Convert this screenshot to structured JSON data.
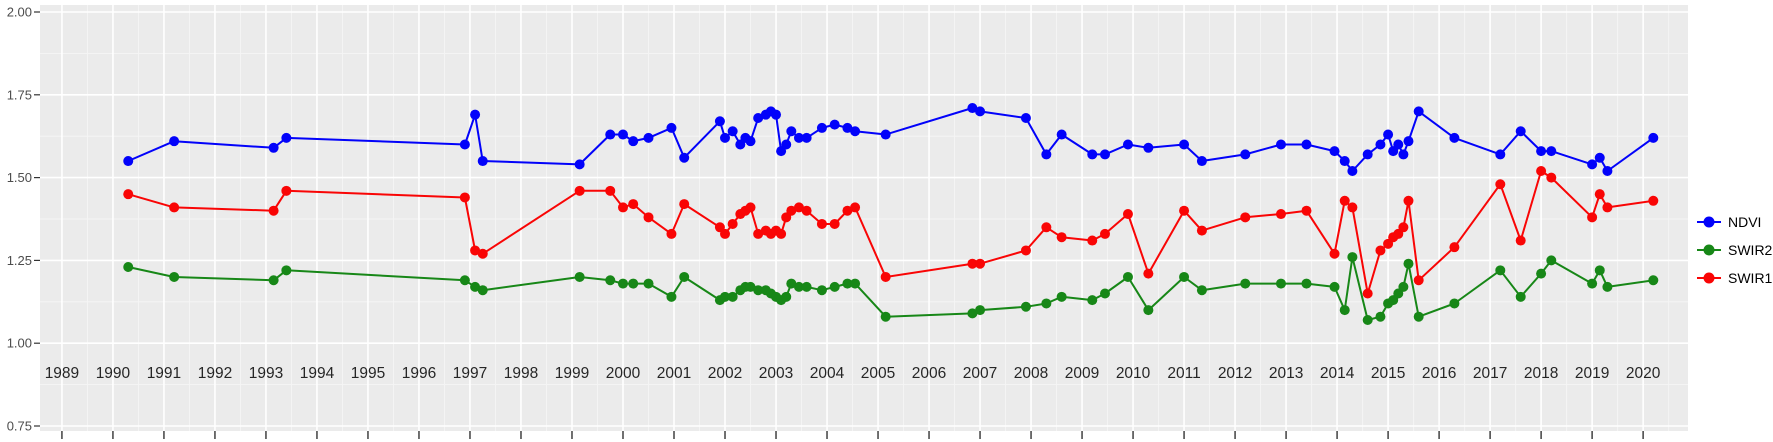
{
  "chart_data": {
    "type": "line",
    "title": "",
    "xlabel": "",
    "ylabel": "",
    "xlim": [
      1988.57,
      2020.88
    ],
    "ylim": [
      0.75,
      2.0
    ],
    "x_tick_years": [
      1989,
      1990,
      1991,
      1992,
      1993,
      1994,
      1995,
      1996,
      1997,
      1998,
      1999,
      2000,
      2001,
      2002,
      2003,
      2004,
      2005,
      2006,
      2007,
      2008,
      2009,
      2010,
      2011,
      2012,
      2013,
      2014,
      2015,
      2016,
      2017,
      2018,
      2019,
      2020
    ],
    "x_tick_labels": [
      "1989",
      "1990",
      "1991",
      "1992",
      "1993",
      "1994",
      "1995",
      "1996",
      "1997",
      "1998",
      "1999",
      "2000",
      "2001",
      "2002",
      "2003",
      "2004",
      "2005",
      "2006",
      "2007",
      "2008",
      "2009",
      "2010",
      "2011",
      "2012",
      "2013",
      "2014",
      "2015",
      "2016",
      "2017",
      "2018",
      "2019",
      "2020"
    ],
    "y_tick_values": [
      2.0,
      1.75,
      1.5,
      1.25,
      1.0,
      0.75
    ],
    "y_tick_labels": [
      "2.00",
      "1.75",
      "1.50",
      "1.25",
      "1.00",
      "0.75"
    ],
    "y_minor_values": [
      1.875,
      1.625,
      1.375,
      1.125,
      0.875
    ],
    "grid": "major and minor white gridlines on gray panel",
    "panel_bg": "#EBEBEB",
    "grid_major_color": "#FFFFFF",
    "grid_minor_color": "#F5F5F5",
    "axis_text_color": "#262626",
    "tick_color": "#333333",
    "legend_position": "right",
    "x": [
      1990.3,
      1991.2,
      1993.15,
      1993.4,
      1996.9,
      1997.1,
      1997.25,
      1999.15,
      1999.75,
      2000.0,
      2000.2,
      2000.5,
      2000.95,
      2001.2,
      2001.9,
      2002.0,
      2002.15,
      2002.3,
      2002.4,
      2002.5,
      2002.65,
      2002.8,
      2002.9,
      2003.0,
      2003.1,
      2003.2,
      2003.3,
      2003.45,
      2003.6,
      2003.9,
      2004.15,
      2004.4,
      2004.55,
      2005.15,
      2006.85,
      2007.0,
      2007.9,
      2008.3,
      2008.6,
      2009.2,
      2009.45,
      2009.9,
      2010.3,
      2011.0,
      2011.35,
      2012.2,
      2012.9,
      2013.4,
      2013.95,
      2014.15,
      2014.3,
      2014.6,
      2014.85,
      2015.0,
      2015.1,
      2015.2,
      2015.3,
      2015.4,
      2015.6,
      2016.3,
      2017.2,
      2017.6,
      2018.0,
      2018.2,
      2019.0,
      2019.15,
      2019.3,
      2020.2
    ],
    "series": [
      {
        "name": "NDVI",
        "color": "#0202FA",
        "values": [
          1.55,
          1.61,
          1.59,
          1.62,
          1.6,
          1.69,
          1.55,
          1.54,
          1.63,
          1.63,
          1.61,
          1.62,
          1.65,
          1.56,
          1.67,
          1.62,
          1.64,
          1.6,
          1.62,
          1.61,
          1.68,
          1.69,
          1.7,
          1.69,
          1.58,
          1.6,
          1.64,
          1.62,
          1.62,
          1.65,
          1.66,
          1.65,
          1.64,
          1.63,
          1.71,
          1.7,
          1.68,
          1.57,
          1.63,
          1.57,
          1.57,
          1.6,
          1.59,
          1.6,
          1.55,
          1.57,
          1.6,
          1.6,
          1.58,
          1.55,
          1.52,
          1.57,
          1.6,
          1.63,
          1.58,
          1.6,
          1.57,
          1.61,
          1.7,
          1.62,
          1.57,
          1.64,
          1.58,
          1.58,
          1.54,
          1.56,
          1.52,
          1.62
        ]
      },
      {
        "name": "SWIR2",
        "color": "#178717",
        "values": [
          1.23,
          1.2,
          1.19,
          1.22,
          1.19,
          1.17,
          1.16,
          1.2,
          1.19,
          1.18,
          1.18,
          1.18,
          1.14,
          1.2,
          1.13,
          1.14,
          1.14,
          1.16,
          1.17,
          1.17,
          1.16,
          1.16,
          1.15,
          1.14,
          1.13,
          1.14,
          1.18,
          1.17,
          1.17,
          1.16,
          1.17,
          1.18,
          1.18,
          1.08,
          1.09,
          1.1,
          1.11,
          1.12,
          1.14,
          1.13,
          1.15,
          1.2,
          1.1,
          1.2,
          1.16,
          1.18,
          1.18,
          1.18,
          1.17,
          1.1,
          1.26,
          1.07,
          1.08,
          1.12,
          1.13,
          1.15,
          1.17,
          1.24,
          1.08,
          1.12,
          1.22,
          1.14,
          1.21,
          1.25,
          1.18,
          1.22,
          1.17,
          1.19
        ]
      },
      {
        "name": "SWIR1",
        "color": "#F90505",
        "values": [
          1.45,
          1.41,
          1.4,
          1.46,
          1.44,
          1.28,
          1.27,
          1.46,
          1.46,
          1.41,
          1.42,
          1.38,
          1.33,
          1.42,
          1.35,
          1.33,
          1.36,
          1.39,
          1.4,
          1.41,
          1.33,
          1.34,
          1.33,
          1.34,
          1.33,
          1.38,
          1.4,
          1.41,
          1.4,
          1.36,
          1.36,
          1.4,
          1.41,
          1.2,
          1.24,
          1.24,
          1.28,
          1.35,
          1.32,
          1.31,
          1.33,
          1.39,
          1.21,
          1.4,
          1.34,
          1.38,
          1.39,
          1.4,
          1.27,
          1.43,
          1.41,
          1.15,
          1.28,
          1.3,
          1.32,
          1.33,
          1.35,
          1.43,
          1.19,
          1.29,
          1.48,
          1.31,
          1.52,
          1.5,
          1.38,
          1.45,
          1.41,
          1.43
        ]
      }
    ],
    "legend_items": [
      {
        "label": "NDVI",
        "color": "#0202FA"
      },
      {
        "label": "SWIR2",
        "color": "#178717"
      },
      {
        "label": "SWIR1",
        "color": "#F90505"
      }
    ]
  }
}
